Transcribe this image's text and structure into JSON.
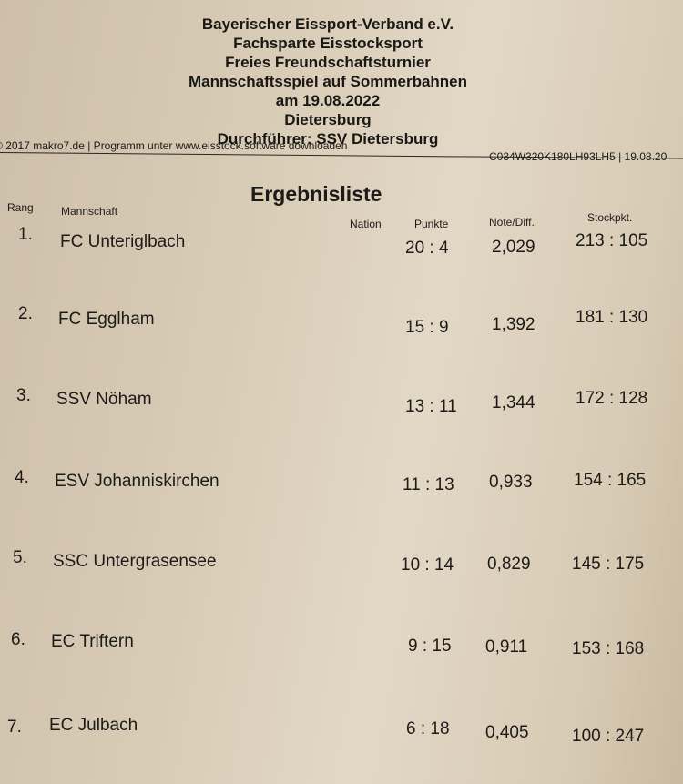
{
  "header": {
    "lines": [
      "Bayerischer Eissport-Verband e.V.",
      "Fachsparte Eisstocksport",
      "Freies Freundschaftsturnier",
      "Mannschaftsspiel auf Sommerbahnen",
      "am 19.08.2022",
      "Dietersburg",
      "Durchführer: SSV Dietersburg"
    ]
  },
  "footer": {
    "left": "© 2017 makro7.de | Programm unter www.eisstock.software downloaden",
    "right": "C034W320K180LH93LH5 | 19.08.20"
  },
  "title": "Ergebnisliste",
  "columns": {
    "rang": "Rang",
    "mannschaft": "Mannschaft",
    "nation": "Nation",
    "punkte": "Punkte",
    "note": "Note/Diff.",
    "stock": "Stockpkt."
  },
  "rows": [
    {
      "rank": "1.",
      "team": "FC Unteriglbach",
      "punkte": "20 : 4",
      "note": "2,029",
      "stock": "213 : 105"
    },
    {
      "rank": "2.",
      "team": "FC Egglham",
      "punkte": "15 : 9",
      "note": "1,392",
      "stock": "181 : 130"
    },
    {
      "rank": "3.",
      "team": "SSV Nöham",
      "punkte": "13 : 11",
      "note": "1,344",
      "stock": "172 : 128"
    },
    {
      "rank": "4.",
      "team": "ESV Johanniskirchen",
      "punkte": "11 : 13",
      "note": "0,933",
      "stock": "154 : 165"
    },
    {
      "rank": "5.",
      "team": "SSC Untergrasensee",
      "punkte": "10 : 14",
      "note": "0,829",
      "stock": "145 : 175"
    },
    {
      "rank": "6.",
      "team": "EC Triftern",
      "punkte": "9 : 15",
      "note": "0,911",
      "stock": "153 : 168"
    },
    {
      "rank": "7.",
      "team": "EC Julbach",
      "punkte": "6 : 18",
      "note": "0,405",
      "stock": "100 : 247"
    }
  ]
}
